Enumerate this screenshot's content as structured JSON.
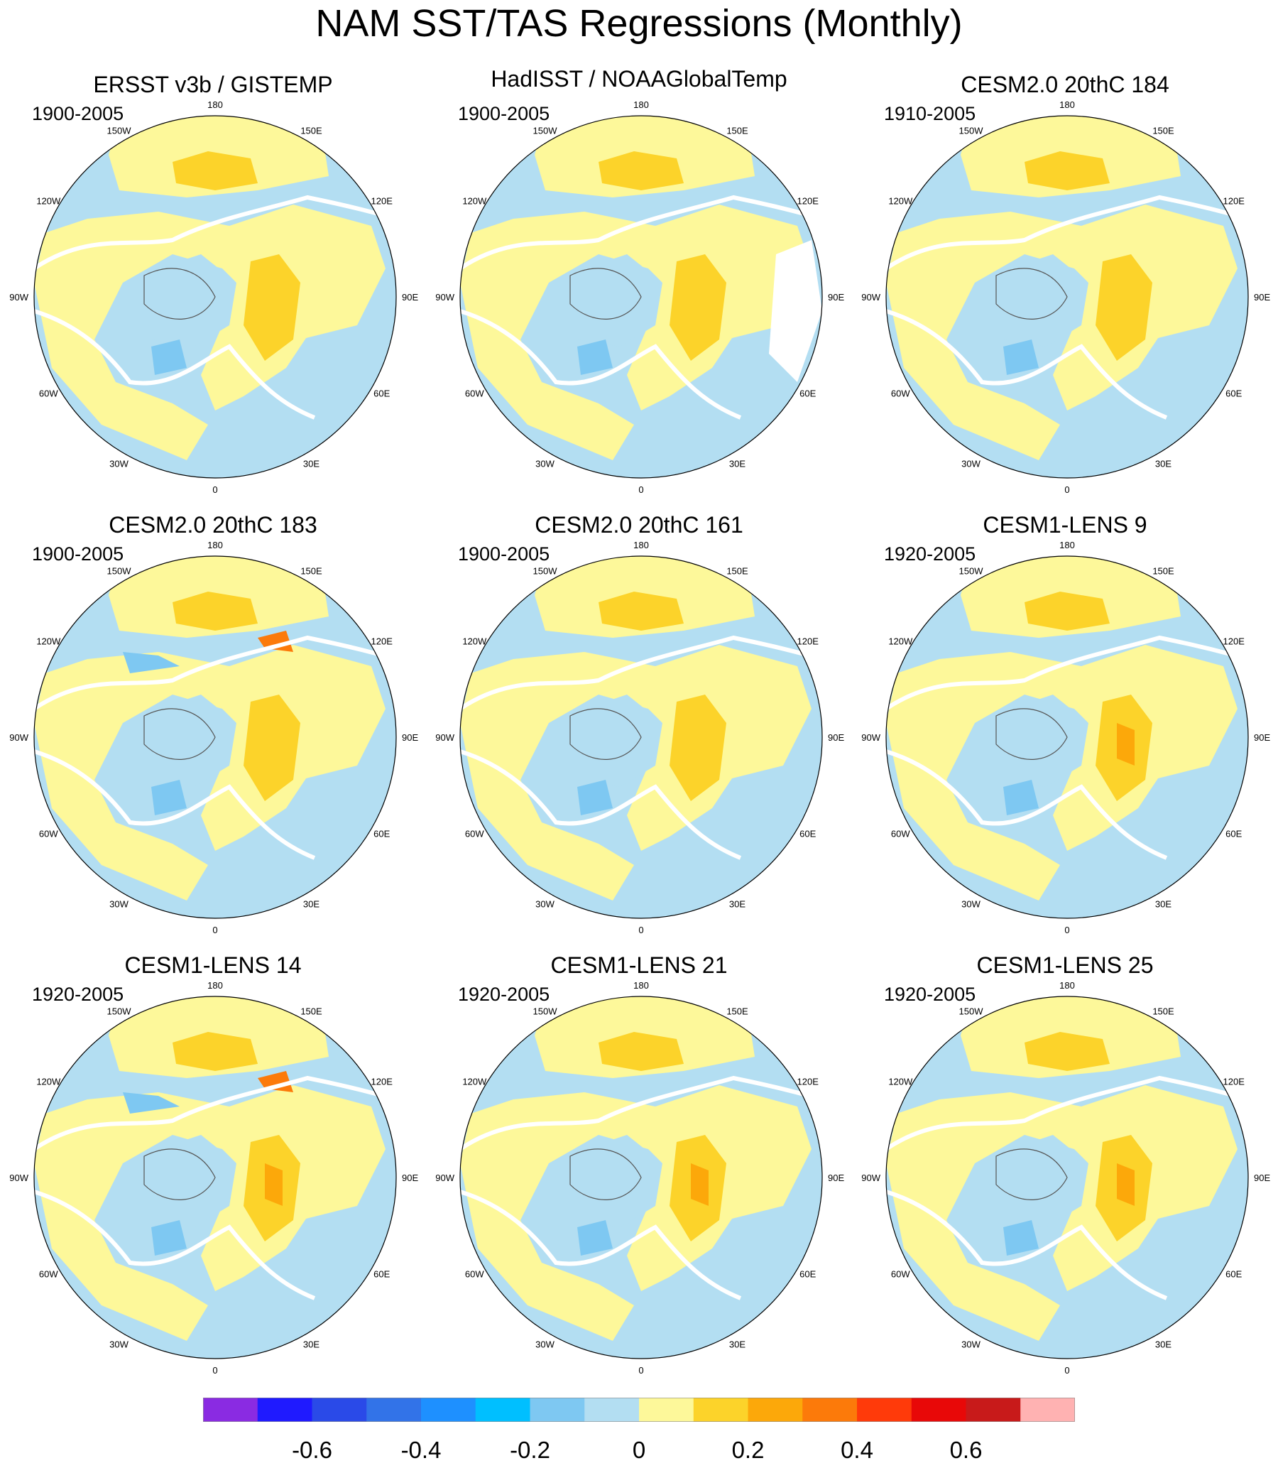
{
  "title": "NAM SST/TAS Regressions (Monthly)",
  "panels": [
    {
      "title": "ERSST v3b / GISTEMP",
      "period": "1900-2005",
      "variant": 0
    },
    {
      "title": "HadISST / NOAAGlobalTemp",
      "period": "1900-2005",
      "variant": 1
    },
    {
      "title": "CESM2.0 20thC 184",
      "period": "1910-2005",
      "variant": 2
    },
    {
      "title": "CESM2.0 20thC 183",
      "period": "1900-2005",
      "variant": 3
    },
    {
      "title": "CESM2.0 20thC 161",
      "period": "1900-2005",
      "variant": 4
    },
    {
      "title": "CESM1-LENS 9",
      "period": "1920-2005",
      "variant": 5
    },
    {
      "title": "CESM1-LENS 14",
      "period": "1920-2005",
      "variant": 6
    },
    {
      "title": "CESM1-LENS 21",
      "period": "1920-2005",
      "variant": 7
    },
    {
      "title": "CESM1-LENS 25",
      "period": "1920-2005",
      "variant": 8
    }
  ],
  "lon_labels": [
    "180",
    "150E",
    "120E",
    "90E",
    "60E",
    "30E",
    "0",
    "30W",
    "60W",
    "90W",
    "120W",
    "150W"
  ],
  "colorbar": {
    "colors": [
      "#8a2be2",
      "#1f1aff",
      "#2a4ae8",
      "#3273e8",
      "#1e90ff",
      "#00bfff",
      "#7ec8f2",
      "#b3def2",
      "#fdf89a",
      "#fcd32a",
      "#fca80a",
      "#fc7a0a",
      "#ff3a0a",
      "#e80808",
      "#c81a1a",
      "#ffb2b2"
    ],
    "tick_labels": [
      "-0.6",
      "-0.4",
      "-0.2",
      "0",
      "0.2",
      "0.4",
      "0.6"
    ]
  },
  "colors": {
    "ocean_neg": "#b3def2",
    "neg2": "#7ec8f2",
    "pos1": "#fdf89a",
    "pos2": "#fcd32a",
    "pos3": "#fca80a",
    "pos4": "#fc7a0a",
    "coast": "#ffffff",
    "coast_line": "#555555"
  }
}
